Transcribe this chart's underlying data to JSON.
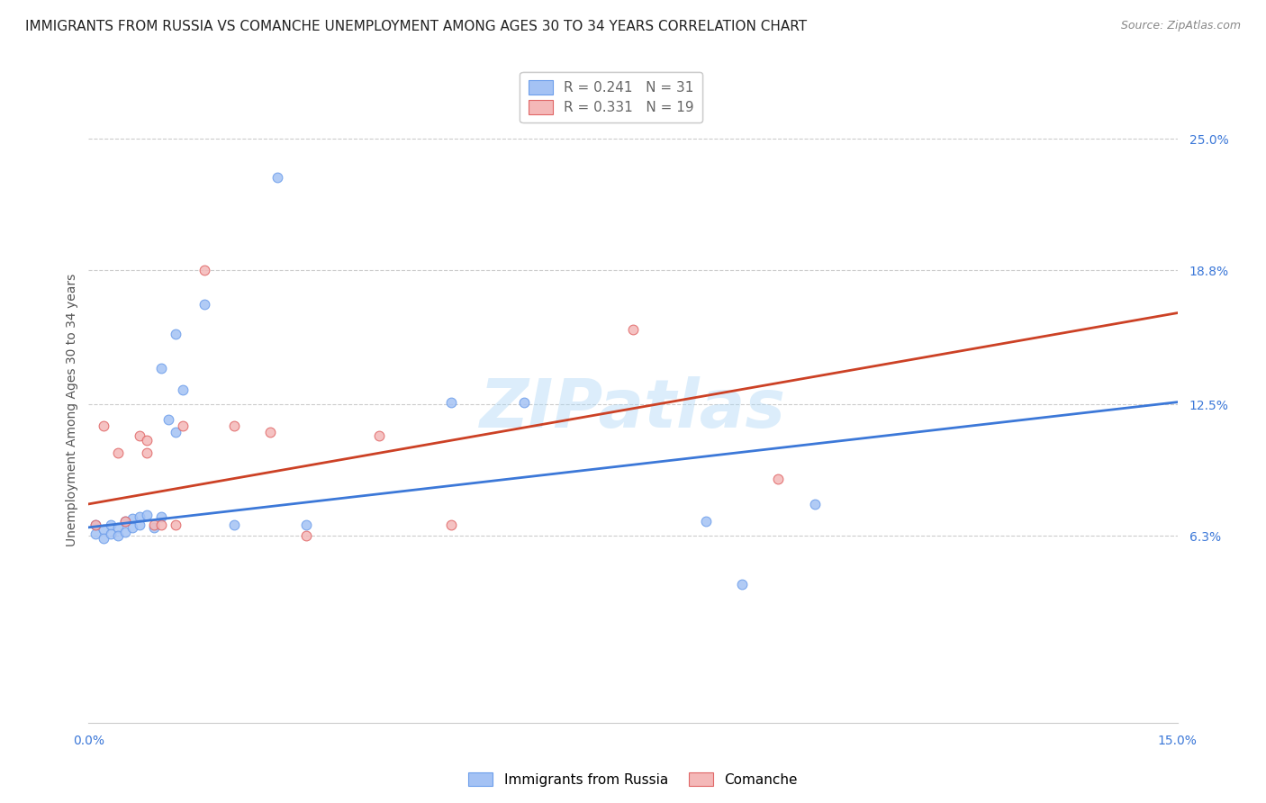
{
  "title": "IMMIGRANTS FROM RUSSIA VS COMANCHE UNEMPLOYMENT AMONG AGES 30 TO 34 YEARS CORRELATION CHART",
  "source": "Source: ZipAtlas.com",
  "ylabel": "Unemployment Among Ages 30 to 34 years",
  "ytick_positions": [
    0.063,
    0.125,
    0.188,
    0.25
  ],
  "ytick_labels": [
    "6.3%",
    "12.5%",
    "18.8%",
    "25.0%"
  ],
  "xtick_positions": [
    0.0,
    0.15
  ],
  "xtick_labels": [
    "0.0%",
    "15.0%"
  ],
  "legend_entries": [
    {
      "label": "R = 0.241   N = 31"
    },
    {
      "label": "R = 0.331   N = 19"
    }
  ],
  "bottom_legend": [
    "Immigrants from Russia",
    "Comanche"
  ],
  "watermark": "ZIPatlas",
  "xlim": [
    0.0,
    0.15
  ],
  "ylim": [
    -0.025,
    0.27
  ],
  "blue_scatter": [
    [
      0.001,
      0.068
    ],
    [
      0.001,
      0.064
    ],
    [
      0.002,
      0.066
    ],
    [
      0.002,
      0.062
    ],
    [
      0.003,
      0.068
    ],
    [
      0.003,
      0.064
    ],
    [
      0.004,
      0.067
    ],
    [
      0.004,
      0.063
    ],
    [
      0.005,
      0.07
    ],
    [
      0.005,
      0.065
    ],
    [
      0.006,
      0.071
    ],
    [
      0.006,
      0.067
    ],
    [
      0.007,
      0.072
    ],
    [
      0.007,
      0.068
    ],
    [
      0.008,
      0.073
    ],
    [
      0.009,
      0.067
    ],
    [
      0.01,
      0.072
    ],
    [
      0.01,
      0.142
    ],
    [
      0.011,
      0.118
    ],
    [
      0.012,
      0.158
    ],
    [
      0.012,
      0.112
    ],
    [
      0.013,
      0.132
    ],
    [
      0.016,
      0.172
    ],
    [
      0.02,
      0.068
    ],
    [
      0.026,
      0.232
    ],
    [
      0.03,
      0.068
    ],
    [
      0.05,
      0.126
    ],
    [
      0.06,
      0.126
    ],
    [
      0.085,
      0.07
    ],
    [
      0.09,
      0.04
    ],
    [
      0.1,
      0.078
    ]
  ],
  "pink_scatter": [
    [
      0.001,
      0.068
    ],
    [
      0.002,
      0.115
    ],
    [
      0.004,
      0.102
    ],
    [
      0.005,
      0.07
    ],
    [
      0.007,
      0.11
    ],
    [
      0.008,
      0.108
    ],
    [
      0.008,
      0.102
    ],
    [
      0.009,
      0.068
    ],
    [
      0.01,
      0.068
    ],
    [
      0.012,
      0.068
    ],
    [
      0.013,
      0.115
    ],
    [
      0.016,
      0.188
    ],
    [
      0.02,
      0.115
    ],
    [
      0.025,
      0.112
    ],
    [
      0.03,
      0.063
    ],
    [
      0.04,
      0.11
    ],
    [
      0.05,
      0.068
    ],
    [
      0.075,
      0.16
    ],
    [
      0.095,
      0.09
    ]
  ],
  "blue_line_x": [
    0.0,
    0.15
  ],
  "blue_line_y": [
    0.067,
    0.126
  ],
  "pink_line_x": [
    0.0,
    0.15
  ],
  "pink_line_y": [
    0.078,
    0.168
  ],
  "blue_color": "#a4c2f4",
  "pink_color": "#f4b8b8",
  "blue_edge_color": "#6d9eeb",
  "pink_edge_color": "#e06666",
  "blue_line_color": "#3c78d8",
  "pink_line_color": "#cc4125",
  "grid_color": "#cccccc",
  "background_color": "#ffffff",
  "title_fontsize": 11,
  "source_fontsize": 9,
  "axis_label_fontsize": 10,
  "tick_fontsize": 10,
  "marker_size": 60
}
